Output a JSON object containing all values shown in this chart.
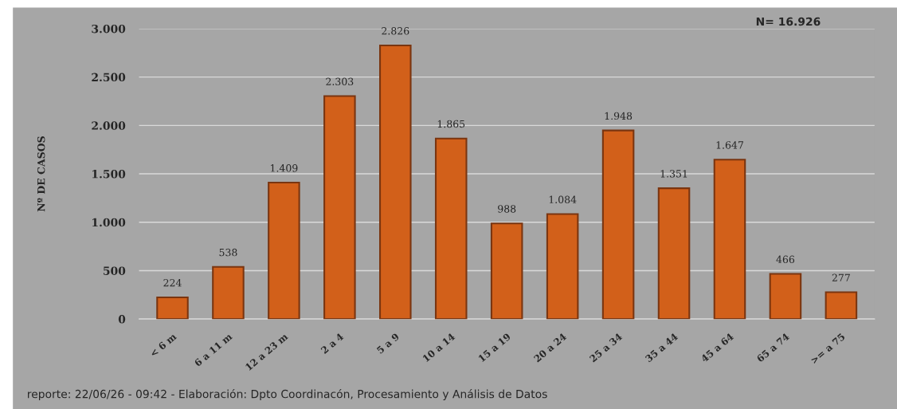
{
  "chart_data": {
    "type": "bar",
    "ylabel": "Nº DE CASOS",
    "categories": [
      "< 6 m",
      "6 a 11 m",
      "12 a 23 m",
      "2 a 4",
      "5 a 9",
      "10 a 14",
      "15 a 19",
      "20 a 24",
      "25 a 34",
      "35 a 44",
      "45 a 64",
      "65 a 74",
      ">= a 75"
    ],
    "values": [
      224,
      538,
      1409,
      2303,
      2826,
      1865,
      988,
      1084,
      1948,
      1351,
      1647,
      466,
      277
    ],
    "value_labels": [
      "224",
      "538",
      "1.409",
      "2.303",
      "2.826",
      "1.865",
      "988",
      "1.084",
      "1.948",
      "1.351",
      "1.647",
      "466",
      "277"
    ],
    "color": "#d2601a",
    "ylim": [
      0,
      3000
    ],
    "yticks": [
      0,
      {
        "value": 500,
        "label": "500"
      },
      {
        "value": 1000,
        "label": "1.000"
      },
      {
        "value": 1500,
        "label": "1.500"
      },
      {
        "value": 2000,
        "label": "2.000"
      },
      {
        "value": 2500,
        "label": "2.500"
      },
      {
        "value": 3000,
        "label": "3.000"
      }
    ],
    "grid": "y",
    "annotations": [
      "N= 16.926",
      "reporte: 22/06/26 - 09:42 - Elaboración: Dpto Coordinacón, Procesamiento y Análisis de Datos"
    ]
  }
}
